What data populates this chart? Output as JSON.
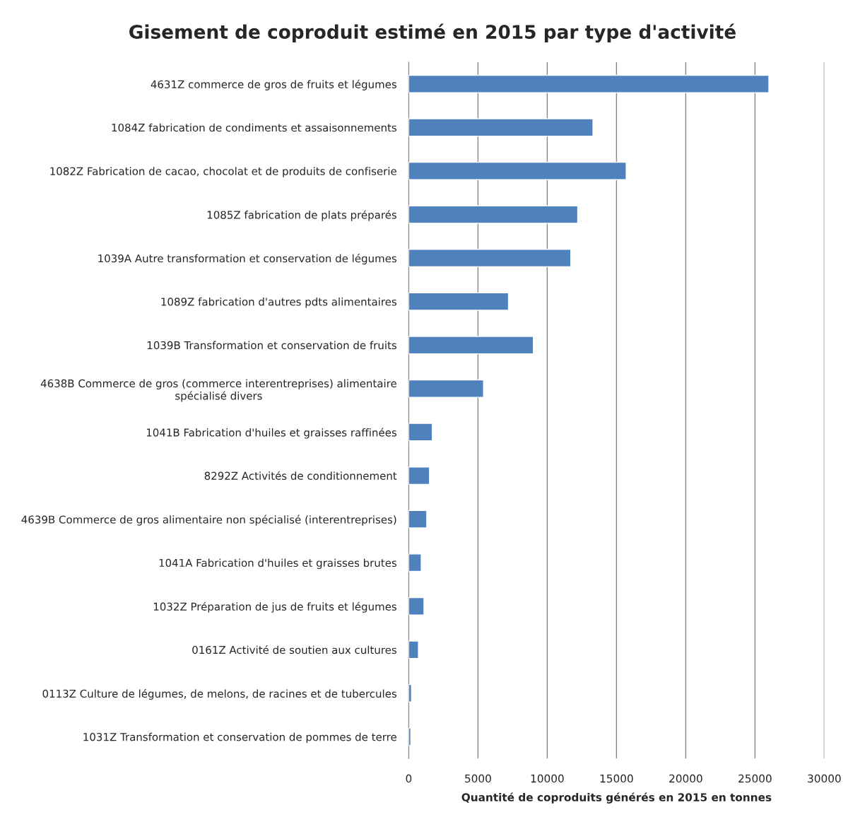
{
  "chart_data": {
    "type": "bar",
    "orientation": "horizontal",
    "title": "Gisement de coproduit estimé en 2015 par type d'activité",
    "xlabel": "Quantité de coproduits générés en 2015 en tonnes",
    "categories": [
      "4631Z commerce de gros de fruits et légumes",
      "1084Z fabrication de condiments et assaisonnements",
      "1082Z Fabrication de cacao, chocolat et de produits de confiserie",
      "1085Z fabrication de plats préparés",
      "1039A Autre transformation et conservation de légumes",
      "1089Z fabrication d'autres pdts alimentaires",
      "1039B Transformation et conservation de fruits",
      "4638B Commerce de gros (commerce interentreprises) alimentaire\nspécialisé divers",
      "1041B Fabrication d'huiles et graisses raffinées",
      "8292Z Activités de conditionnement",
      "4639B Commerce de gros alimentaire non spécialisé (interentreprises)",
      "1041A Fabrication d'huiles et graisses brutes",
      "1032Z Préparation de jus de fruits et légumes",
      "0161Z Activité de soutien aux cultures",
      "0113Z Culture de légumes, de melons, de racines et de tubercules",
      "1031Z Transformation et conservation de pommes de terre"
    ],
    "values": [
      26000,
      13300,
      15700,
      12200,
      11700,
      7200,
      9000,
      5400,
      1700,
      1500,
      1300,
      900,
      1100,
      700,
      200,
      150
    ],
    "color": "#4f81bd",
    "xlim": [
      0,
      30000
    ],
    "xticks": [
      0,
      5000,
      10000,
      15000,
      20000,
      25000,
      30000
    ],
    "grid": "x",
    "legend": false
  }
}
